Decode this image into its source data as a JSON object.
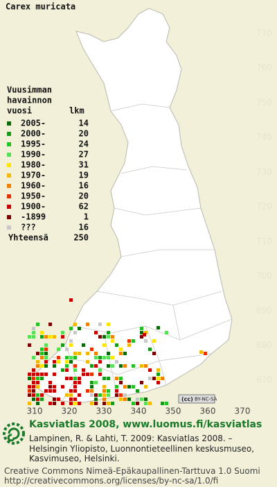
{
  "map": {
    "title": "Carex muricata",
    "legend": {
      "heading": [
        "Vuusimman",
        "havainnon",
        "vuosi"
      ],
      "count_heading": "lkm",
      "entries": [
        {
          "label": "2005-",
          "count": 14,
          "color": "#0a6a0a"
        },
        {
          "label": "2000-",
          "count": 20,
          "color": "#179a17"
        },
        {
          "label": "1995-",
          "count": 24,
          "color": "#22c022"
        },
        {
          "label": "1990-",
          "count": 27,
          "color": "#55e055"
        },
        {
          "label": "1980-",
          "count": 31,
          "color": "#ffe400"
        },
        {
          "label": "1970-",
          "count": 19,
          "color": "#f5b800"
        },
        {
          "label": "1960-",
          "count": 16,
          "color": "#f08000"
        },
        {
          "label": "1950-",
          "count": 20,
          "color": "#e83000"
        },
        {
          "label": "1900-",
          "count": 62,
          "color": "#c80000"
        },
        {
          "label": "-1899",
          "count": 1,
          "color": "#7a0000"
        },
        {
          "label": "???",
          "count": 16,
          "color": "#c8c8c8"
        }
      ],
      "total_label": "Yhteensä",
      "total": 250
    },
    "northing_labels": [
      770,
      760,
      750,
      740,
      730,
      720,
      710,
      700,
      690,
      680,
      670
    ],
    "easting_labels": [
      310,
      320,
      330,
      340,
      350,
      360,
      370
    ],
    "license_badge": "BY-NC-SA"
  },
  "footer": {
    "heading": "Kasviatlas 2008, www.luomus.fi/kasviatlas",
    "citation": [
      "Lampinen, R. & Lahti, T. 2009: Kasviatlas 2008. –",
      "Helsingin Yliopisto, Luonnontieteellinen keskusmuseo,",
      "Kasvimuseo, Helsinki."
    ],
    "license": [
      "Creative Commons Nimeä-Epäkaupallinen-Tarttuva 1.0 Suomi",
      "http://creativecommons.org/licenses/by-nc-sa/1.0/fi"
    ]
  }
}
